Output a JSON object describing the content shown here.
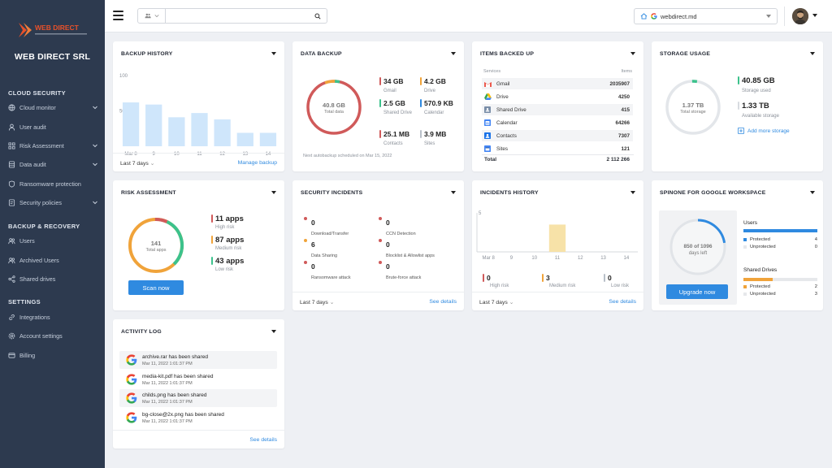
{
  "brand": {
    "logo_text": "WEB DIRECT",
    "company": "WEB DIRECT SRL"
  },
  "sidebar": {
    "sections": [
      {
        "title": "CLOUD SECURITY",
        "items": [
          {
            "label": "Cloud monitor",
            "icon": "globe-icon",
            "chevron": true
          },
          {
            "label": "User audit",
            "icon": "user-icon",
            "chevron": false
          },
          {
            "label": "Risk Assessment",
            "icon": "grid-icon",
            "chevron": true
          },
          {
            "label": "Data audit",
            "icon": "database-icon",
            "chevron": true
          },
          {
            "label": "Ransomware protection",
            "icon": "shield-icon",
            "chevron": false
          },
          {
            "label": "Security policies",
            "icon": "policy-icon",
            "chevron": true
          }
        ]
      },
      {
        "title": "BACKUP & RECOVERY",
        "items": [
          {
            "label": "Users",
            "icon": "users-icon",
            "chevron": false
          },
          {
            "label": "Archived Users",
            "icon": "archived-users-icon",
            "chevron": false
          },
          {
            "label": "Shared drives",
            "icon": "share-icon",
            "chevron": false
          }
        ]
      },
      {
        "title": "SETTINGS",
        "items": [
          {
            "label": "Integrations",
            "icon": "link-icon",
            "chevron": false
          },
          {
            "label": "Account settings",
            "icon": "gear-icon",
            "chevron": false
          },
          {
            "label": "Billing",
            "icon": "card-icon",
            "chevron": false
          }
        ]
      }
    ]
  },
  "topbar": {
    "search_placeholder": "",
    "domain": "webdirect.md"
  },
  "backup_history": {
    "title": "BACKUP HISTORY",
    "footer_period": "Last 7 days",
    "footer_link": "Manage backup",
    "chart_data": {
      "type": "bar",
      "categories": [
        "Mar 8",
        "9",
        "10",
        "11",
        "12",
        "13",
        "14"
      ],
      "values": [
        62,
        59,
        41,
        47,
        38,
        19,
        19
      ],
      "ylim": [
        0,
        100
      ],
      "yticks": [
        "100",
        "50"
      ]
    }
  },
  "data_backup": {
    "title": "DATA BACKUP",
    "total_value": "40.8 GB",
    "total_label": "Total data",
    "stats": [
      {
        "value": "34 GB",
        "label": "Gmail",
        "color": "#d05a5a"
      },
      {
        "value": "4.2 GB",
        "label": "Drive",
        "color": "#f0a33a"
      },
      {
        "value": "2.5 GB",
        "label": "Shared Drive",
        "color": "#3cc28c"
      },
      {
        "value": "570.9 KB",
        "label": "Calendar",
        "color": "#2f8ae0"
      },
      {
        "value": "25.1 MB",
        "label": "Contacts",
        "color": "#d05a5a"
      },
      {
        "value": "3.9 MB",
        "label": "Sites",
        "color": "#b9c0c9"
      }
    ],
    "note": "Next autobackup scheduled on Mar 15, 2022"
  },
  "items_backed_up": {
    "title": "ITEMS BACKED UP",
    "col_services": "Services",
    "col_items": "Items",
    "rows": [
      {
        "service": "Gmail",
        "items": "2035907"
      },
      {
        "service": "Drive",
        "items": "4250"
      },
      {
        "service": "Shared Drive",
        "items": "415"
      },
      {
        "service": "Calendar",
        "items": "64266"
      },
      {
        "service": "Contacts",
        "items": "7307"
      },
      {
        "service": "Sites",
        "items": "121"
      }
    ],
    "total_label": "Total",
    "total_value": "2 112 266"
  },
  "storage_usage": {
    "title": "STORAGE USAGE",
    "total_value": "1.37 TB",
    "total_label": "Total storage",
    "used_value": "40.85 GB",
    "used_label": "Storage used",
    "available_value": "1.33 TB",
    "available_label": "Available storage",
    "add_link": "Add more storage"
  },
  "risk_assessment": {
    "title": "RISK ASSESSMENT",
    "total_value": "141",
    "total_label": "Total apps",
    "stats": [
      {
        "value": "11 apps",
        "label": "High risk",
        "color": "#d05a5a"
      },
      {
        "value": "87 apps",
        "label": "Medium risk",
        "color": "#f0a33a"
      },
      {
        "value": "43 apps",
        "label": "Low risk",
        "color": "#3cc28c"
      }
    ],
    "button": "Scan now"
  },
  "security_incidents": {
    "title": "SECURITY INCIDENTS",
    "items": [
      {
        "value": "0",
        "label": "Download/Transfer"
      },
      {
        "value": "0",
        "label": "CCN Detection"
      },
      {
        "value": "6",
        "label": "Data Sharing"
      },
      {
        "value": "0",
        "label": "Blocklist & Allowlist apps"
      },
      {
        "value": "0",
        "label": "Ransomware attack"
      },
      {
        "value": "0",
        "label": "Brute-force attack"
      }
    ],
    "footer_period": "Last 7 days",
    "footer_link": "See details"
  },
  "incidents_history": {
    "title": "INCIDENTS HISTORY",
    "chart_data": {
      "type": "bar",
      "categories": [
        "Mar 8",
        "9",
        "10",
        "11",
        "12",
        "13",
        "14"
      ],
      "values": [
        0,
        0,
        0,
        3.5,
        0,
        0,
        0
      ],
      "ylim": [
        0,
        5
      ],
      "yticks": [
        "5"
      ]
    },
    "stats": [
      {
        "value": "0",
        "label": "High risk",
        "color": "#d05a5a"
      },
      {
        "value": "3",
        "label": "Medium risk",
        "color": "#f0a33a"
      },
      {
        "value": "0",
        "label": "Low risk",
        "color": "#b9c0c9"
      }
    ],
    "footer_period": "Last 7 days",
    "footer_link": "See details"
  },
  "spinone": {
    "title": "SPINONE FOR GOOGLE WORKSPACE",
    "days_value": "850 of 1096",
    "days_label": "days left",
    "days_fraction": 0.2245,
    "button": "Upgrade now",
    "users": {
      "title": "Users",
      "protected_label": "Protected",
      "protected": "4",
      "unprotected_label": "Unprotected",
      "unprotected": "0",
      "fill": 1.0
    },
    "drives": {
      "title": "Shared Drives",
      "protected_label": "Protected",
      "protected": "2",
      "unprotected_label": "Unprotected",
      "unprotected": "3",
      "fill": 0.4
    }
  },
  "activity_log": {
    "title": "ACTIVITY LOG",
    "entries": [
      {
        "text": "archive.rar has been shared",
        "date": "Mar 11, 2022 1:01:37 PM"
      },
      {
        "text": "media-kit.pdf has been shared",
        "date": "Mar 11, 2022 1:01:37 PM"
      },
      {
        "text": "childs.png has been shared",
        "date": "Mar 11, 2022 1:01:37 PM"
      },
      {
        "text": "bg-close@2x.png has been shared",
        "date": "Mar 11, 2022 1:01:37 PM"
      }
    ],
    "footer_link": "See details"
  },
  "colors": {
    "accent": "#2f8ae0",
    "sidebar": "#2d3a4f",
    "high": "#d05a5a",
    "medium": "#f0a33a",
    "low": "#3cc28c"
  }
}
